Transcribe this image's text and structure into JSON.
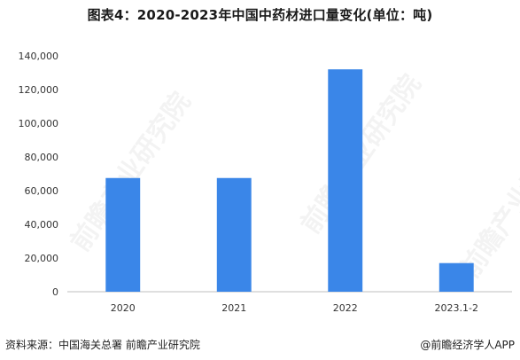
{
  "title": "图表4：2020-2023年中国中药材进口量变化(单位：吨)",
  "footer": {
    "source": "资料来源：中国海关总署 前瞻产业研究院",
    "brand": "@前瞻经济学人APP"
  },
  "watermark": {
    "text": "前瞻产业研究院"
  },
  "colors": {
    "bar": "#3a86e8",
    "axis": "#bfbfbf",
    "text": "#333333"
  },
  "chart_data": {
    "type": "bar",
    "title": "图表4：2020-2023年中国中药材进口量变化(单位：吨)",
    "categories": [
      "2020",
      "2021",
      "2022",
      "2023.1-2"
    ],
    "values": [
      67500,
      67500,
      132000,
      17000
    ],
    "ylim": [
      0,
      140000
    ],
    "yticks": [
      0,
      20000,
      40000,
      60000,
      80000,
      100000,
      120000,
      140000
    ],
    "ytick_labels": [
      "0",
      "20,000",
      "40,000",
      "60,000",
      "80,000",
      "100,000",
      "120,000",
      "140,000"
    ],
    "xlabel": "",
    "ylabel": "",
    "grid": false,
    "legend": false
  }
}
